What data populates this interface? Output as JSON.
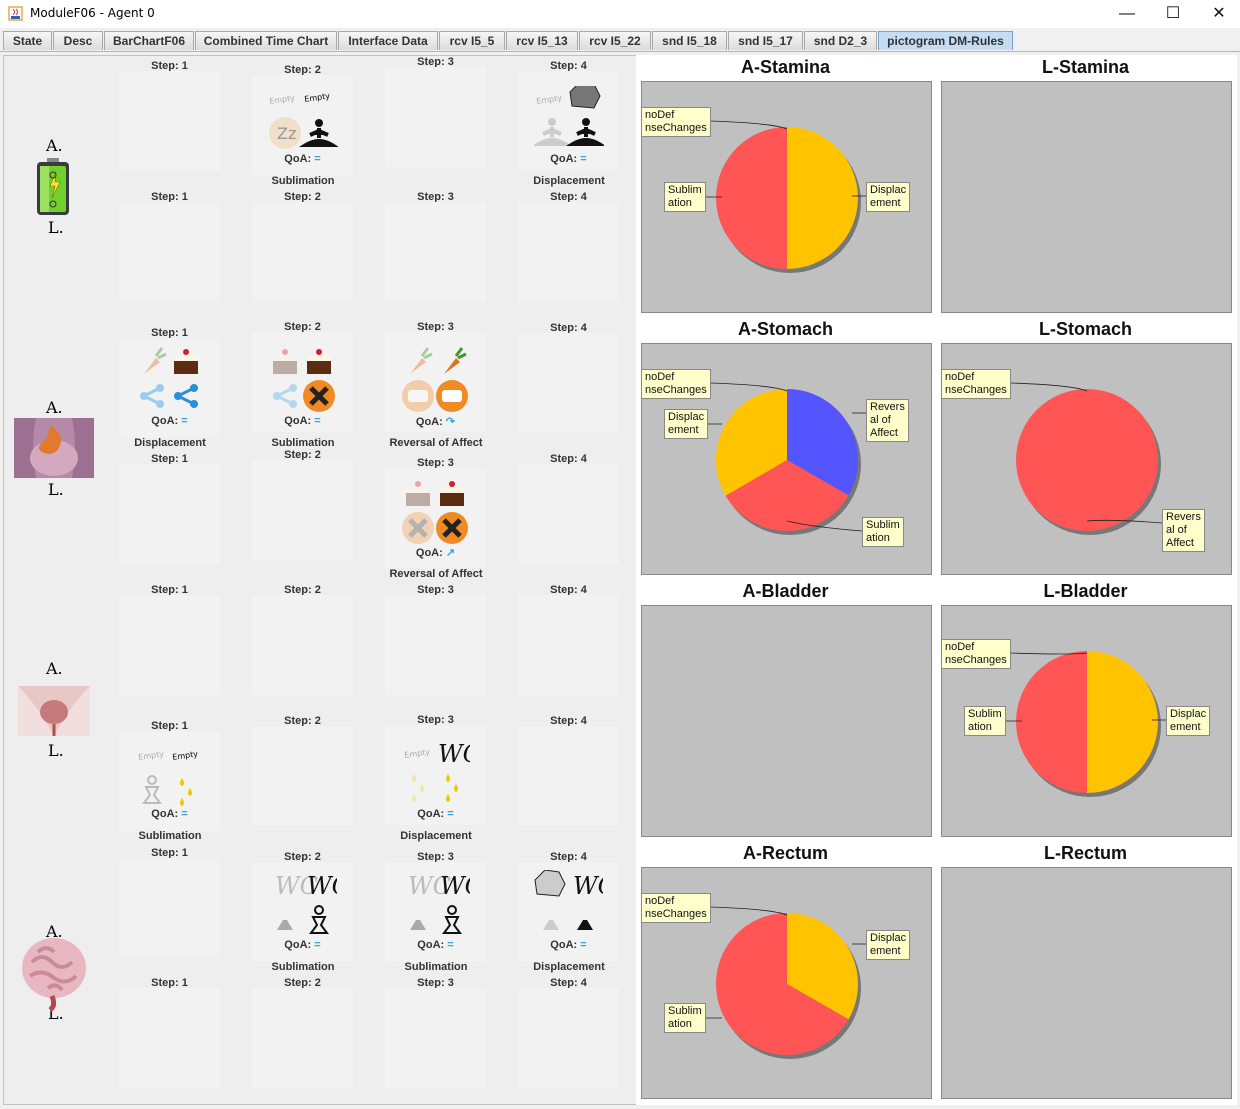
{
  "window": {
    "title": "ModuleF06 - Agent 0",
    "minimize": "—",
    "maximize": "☐",
    "close": "✕"
  },
  "tabs": [
    "State",
    "Desc",
    "BarChartF06",
    "Combined Time Chart",
    "Interface Data",
    "rcv I5_5",
    "rcv I5_13",
    "rcv I5_22",
    "snd I5_18",
    "snd I5_17",
    "snd D2_3",
    "pictogram DM-Rules"
  ],
  "active_tab": "pictogram DM-Rules",
  "row_letters": {
    "a": "A.",
    "l": "L."
  },
  "qoa_label": "QoA:",
  "steps": [
    "Step: 1",
    "Step: 2",
    "Step: 3",
    "Step: 4"
  ],
  "organs": [
    "battery-icon",
    "stomach-icon",
    "bladder-icon",
    "intestine-icon"
  ],
  "qoa_values": {
    "r0_s2": "=",
    "r0_s4": "=",
    "r2_s1": "=",
    "r2_s2": "=",
    "r2_s3": "↷",
    "r3_s3": "↗",
    "r5_s1": "=",
    "r5_s3": "=",
    "r6_s2": "=",
    "r6_s3": "=",
    "r6_s4": "="
  },
  "mechanisms": {
    "m0_2": "Sublimation",
    "m0_4": "Displacement",
    "m2_1": "Displacement",
    "m2_2": "Sublimation",
    "m2_3": "Reversal of Affect",
    "m3_3": "Reversal of Affect",
    "m5_1": "Sublimation",
    "m5_3": "Displacement",
    "m6_2": "Sublimation",
    "m6_3": "Sublimation",
    "m6_4": "Displacement"
  },
  "pictos": {
    "empty": "Empty",
    "wc": "WC"
  },
  "charts": [
    {
      "title": "A-Stamina",
      "slices": [
        {
          "label": "Displacement",
          "value": 50,
          "color": "#ffc300"
        },
        {
          "label": "Sublimation",
          "value": 50,
          "color": "#ff5555"
        }
      ],
      "labels": [
        "noDef\nnseChanges",
        "Displac\nement",
        "Sublim\nation"
      ]
    },
    {
      "title": "L-Stamina",
      "slices": [],
      "labels": []
    },
    {
      "title": "A-Stomach",
      "slices": [
        {
          "label": "Reversal of Affect",
          "value": 33.3,
          "color": "#5555ff"
        },
        {
          "label": "Sublimation",
          "value": 33.3,
          "color": "#ff5555"
        },
        {
          "label": "Displacement",
          "value": 33.4,
          "color": "#ffc300"
        }
      ],
      "labels": [
        "noDef\nnseChanges",
        "Revers\nal of\nAffect",
        "Displac\nement",
        "Sublim\nation"
      ]
    },
    {
      "title": "L-Stomach",
      "slices": [
        {
          "label": "Reversal of Affect",
          "value": 100,
          "color": "#ff5555"
        }
      ],
      "labels": [
        "noDef\nnseChanges",
        "Revers\nal of\nAffect"
      ]
    },
    {
      "title": "A-Bladder",
      "slices": [],
      "labels": []
    },
    {
      "title": "L-Bladder",
      "slices": [
        {
          "label": "Displacement",
          "value": 50,
          "color": "#ffc300"
        },
        {
          "label": "Sublimation",
          "value": 50,
          "color": "#ff5555"
        }
      ],
      "labels": [
        "noDef\nnseChanges",
        "Displac\nement",
        "Sublim\nation"
      ]
    },
    {
      "title": "A-Rectum",
      "slices": [
        {
          "label": "Displacement",
          "value": 33.3,
          "color": "#ffc300"
        },
        {
          "label": "Sublimation",
          "value": 66.7,
          "color": "#ff5555"
        }
      ],
      "labels": [
        "noDef\nnseChanges",
        "Displac\nement",
        "Sublim\nation"
      ]
    },
    {
      "title": "L-Rectum",
      "slices": [],
      "labels": []
    }
  ]
}
